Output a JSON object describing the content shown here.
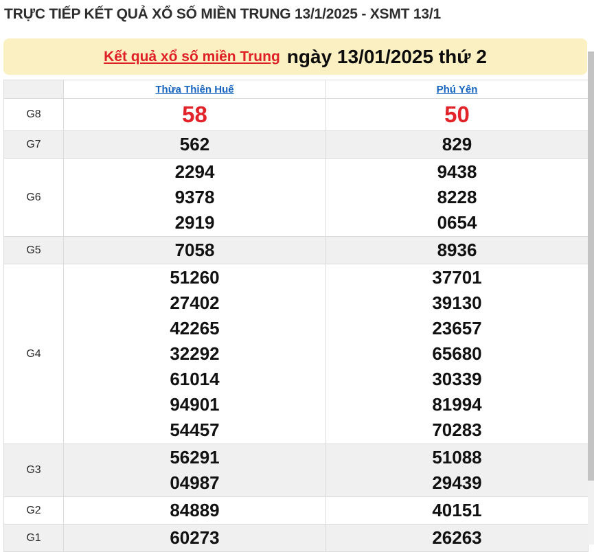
{
  "page_title": "TRỰC TIẾP KẾT QUẢ XỔ SỐ MIỀN TRUNG 13/1/2025 - XSMT 13/1",
  "banner": {
    "link_text": "Kết quả xổ số miền Trung",
    "date_text": "ngày 13/01/2025 thứ 2"
  },
  "table": {
    "columns": [
      "Thừa Thiên Huế",
      "Phú Yên"
    ],
    "rows": [
      {
        "label": "G8",
        "highlight": true,
        "values": [
          [
            "58"
          ],
          [
            "50"
          ]
        ]
      },
      {
        "label": "G7",
        "highlight": false,
        "values": [
          [
            "562"
          ],
          [
            "829"
          ]
        ]
      },
      {
        "label": "G6",
        "highlight": false,
        "values": [
          [
            "2294",
            "9378",
            "2919"
          ],
          [
            "9438",
            "8228",
            "0654"
          ]
        ]
      },
      {
        "label": "G5",
        "highlight": false,
        "values": [
          [
            "7058"
          ],
          [
            "8936"
          ]
        ]
      },
      {
        "label": "G4",
        "highlight": false,
        "values": [
          [
            "51260",
            "27402",
            "42265",
            "32292",
            "61014",
            "94901",
            "54457"
          ],
          [
            "37701",
            "39130",
            "23657",
            "65680",
            "30339",
            "81994",
            "70283"
          ]
        ]
      },
      {
        "label": "G3",
        "highlight": false,
        "values": [
          [
            "56291",
            "04987"
          ],
          [
            "51088",
            "29439"
          ]
        ]
      },
      {
        "label": "G2",
        "highlight": false,
        "values": [
          [
            "84889"
          ],
          [
            "40151"
          ]
        ]
      },
      {
        "label": "G1",
        "highlight": false,
        "values": [
          [
            "60273"
          ],
          [
            "26263"
          ]
        ]
      }
    ]
  },
  "colors": {
    "banner_bg": "#fbf0c1",
    "banner_link_red": "#df2026",
    "result_red": "#e22329",
    "header_link_blue": "#1565c0",
    "row_shade": "#f0f0f0",
    "border": "#dbdbdb"
  }
}
